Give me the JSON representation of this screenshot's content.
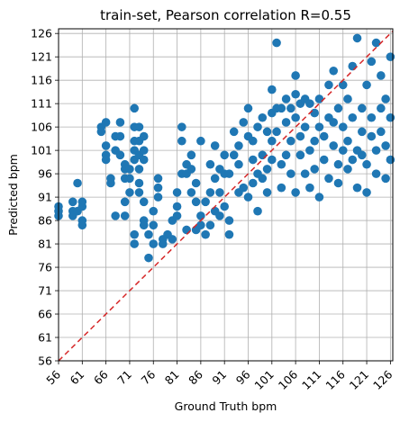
{
  "chart_data": {
    "type": "scatter",
    "title": "train-set, Pearson correlation R=0.55",
    "xlabel": "Ground Truth bpm",
    "ylabel": "Predicted bpm",
    "xlim": [
      56,
      126.5
    ],
    "ylim": [
      56,
      127
    ],
    "xticks": [
      56,
      61,
      66,
      71,
      76,
      81,
      86,
      91,
      96,
      101,
      106,
      111,
      116,
      121,
      126
    ],
    "yticks": [
      56,
      61,
      66,
      71,
      76,
      81,
      86,
      91,
      96,
      101,
      106,
      111,
      116,
      121,
      126
    ],
    "grid": true,
    "point_color": "#1f77b4",
    "reference_line": {
      "from": [
        56,
        56
      ],
      "to": [
        127,
        127
      ],
      "color": "#d62728",
      "style": "dashed"
    },
    "points": [
      [
        56,
        88
      ],
      [
        56,
        87
      ],
      [
        56,
        89
      ],
      [
        59,
        88
      ],
      [
        59,
        87
      ],
      [
        59,
        90
      ],
      [
        60,
        94
      ],
      [
        60,
        88
      ],
      [
        61,
        86
      ],
      [
        61,
        85
      ],
      [
        61,
        89
      ],
      [
        61,
        90
      ],
      [
        65,
        106
      ],
      [
        65,
        105
      ],
      [
        66,
        107
      ],
      [
        66,
        102
      ],
      [
        66,
        100
      ],
      [
        66,
        99
      ],
      [
        67,
        95
      ],
      [
        67,
        94
      ],
      [
        68,
        104
      ],
      [
        68,
        101
      ],
      [
        68,
        87
      ],
      [
        69,
        107
      ],
      [
        69,
        104
      ],
      [
        69,
        100
      ],
      [
        70,
        98
      ],
      [
        70,
        97
      ],
      [
        70,
        95
      ],
      [
        70,
        90
      ],
      [
        70,
        87
      ],
      [
        71,
        97
      ],
      [
        71,
        95
      ],
      [
        71,
        92
      ],
      [
        72,
        110
      ],
      [
        72,
        106
      ],
      [
        72,
        103
      ],
      [
        72,
        101
      ],
      [
        72,
        99
      ],
      [
        72,
        83
      ],
      [
        72,
        81
      ],
      [
        73,
        106
      ],
      [
        73,
        103
      ],
      [
        73,
        100
      ],
      [
        73,
        97
      ],
      [
        73,
        94
      ],
      [
        73,
        92
      ],
      [
        74,
        104
      ],
      [
        74,
        101
      ],
      [
        74,
        99
      ],
      [
        74,
        90
      ],
      [
        74,
        86
      ],
      [
        74,
        85
      ],
      [
        75,
        78
      ],
      [
        75,
        83
      ],
      [
        76,
        81
      ],
      [
        76,
        85
      ],
      [
        76,
        88
      ],
      [
        77,
        95
      ],
      [
        77,
        93
      ],
      [
        77,
        91
      ],
      [
        78,
        82
      ],
      [
        78,
        81
      ],
      [
        79,
        83
      ],
      [
        80,
        82
      ],
      [
        80,
        86
      ],
      [
        81,
        87
      ],
      [
        81,
        89
      ],
      [
        81,
        92
      ],
      [
        82,
        96
      ],
      [
        82,
        103
      ],
      [
        82,
        106
      ],
      [
        83,
        98
      ],
      [
        83,
        96
      ],
      [
        83,
        84
      ],
      [
        84,
        92
      ],
      [
        84,
        97
      ],
      [
        84,
        100
      ],
      [
        85,
        84
      ],
      [
        85,
        90
      ],
      [
        85,
        94
      ],
      [
        86,
        87
      ],
      [
        86,
        85
      ],
      [
        86,
        103
      ],
      [
        87,
        83
      ],
      [
        87,
        90
      ],
      [
        88,
        98
      ],
      [
        88,
        92
      ],
      [
        88,
        85
      ],
      [
        89,
        88
      ],
      [
        89,
        95
      ],
      [
        89,
        102
      ],
      [
        90,
        97
      ],
      [
        90,
        92
      ],
      [
        90,
        87
      ],
      [
        91,
        89
      ],
      [
        91,
        96
      ],
      [
        91,
        100
      ],
      [
        92,
        83
      ],
      [
        92,
        86
      ],
      [
        92,
        96
      ],
      [
        93,
        105
      ],
      [
        93,
        100
      ],
      [
        94,
        92
      ],
      [
        94,
        98
      ],
      [
        94,
        102
      ],
      [
        95,
        107
      ],
      [
        95,
        93
      ],
      [
        96,
        91
      ],
      [
        96,
        104
      ],
      [
        96,
        110
      ],
      [
        97,
        94
      ],
      [
        97,
        99
      ],
      [
        97,
        103
      ],
      [
        98,
        88
      ],
      [
        98,
        96
      ],
      [
        98,
        106
      ],
      [
        99,
        95
      ],
      [
        99,
        100
      ],
      [
        99,
        108
      ],
      [
        100,
        105
      ],
      [
        100,
        97
      ],
      [
        100,
        92
      ],
      [
        101,
        114
      ],
      [
        101,
        109
      ],
      [
        101,
        103
      ],
      [
        101,
        99
      ],
      [
        102,
        124
      ],
      [
        102,
        110
      ],
      [
        102,
        105
      ],
      [
        103,
        93
      ],
      [
        103,
        98
      ],
      [
        103,
        110
      ],
      [
        104,
        112
      ],
      [
        104,
        107
      ],
      [
        104,
        100
      ],
      [
        105,
        96
      ],
      [
        105,
        103
      ],
      [
        105,
        110
      ],
      [
        106,
        92
      ],
      [
        106,
        117
      ],
      [
        106,
        113
      ],
      [
        106,
        108
      ],
      [
        107,
        100
      ],
      [
        107,
        104
      ],
      [
        107,
        111
      ],
      [
        108,
        96
      ],
      [
        108,
        106
      ],
      [
        108,
        112
      ],
      [
        109,
        93
      ],
      [
        109,
        101
      ],
      [
        109,
        111
      ],
      [
        110,
        97
      ],
      [
        110,
        103
      ],
      [
        110,
        109
      ],
      [
        111,
        91
      ],
      [
        111,
        106
      ],
      [
        111,
        112
      ],
      [
        112,
        104
      ],
      [
        112,
        99
      ],
      [
        113,
        95
      ],
      [
        113,
        108
      ],
      [
        113,
        115
      ],
      [
        114,
        102
      ],
      [
        114,
        107
      ],
      [
        114,
        118
      ],
      [
        115,
        94
      ],
      [
        115,
        98
      ],
      [
        115,
        110
      ],
      [
        116,
        101
      ],
      [
        116,
        106
      ],
      [
        116,
        115
      ],
      [
        117,
        97
      ],
      [
        117,
        103
      ],
      [
        117,
        112
      ],
      [
        118,
        99
      ],
      [
        118,
        108
      ],
      [
        118,
        119
      ],
      [
        119,
        125
      ],
      [
        119,
        93
      ],
      [
        119,
        101
      ],
      [
        120,
        100
      ],
      [
        120,
        105
      ],
      [
        120,
        110
      ],
      [
        121,
        92
      ],
      [
        121,
        98
      ],
      [
        121,
        115
      ],
      [
        122,
        104
      ],
      [
        122,
        108
      ],
      [
        122,
        120
      ],
      [
        123,
        124
      ],
      [
        123,
        96
      ],
      [
        123,
        101
      ],
      [
        124,
        105
      ],
      [
        124,
        110
      ],
      [
        124,
        117
      ],
      [
        125,
        95
      ],
      [
        125,
        102
      ],
      [
        125,
        112
      ],
      [
        126,
        99
      ],
      [
        126,
        108
      ],
      [
        126,
        121
      ]
    ]
  }
}
